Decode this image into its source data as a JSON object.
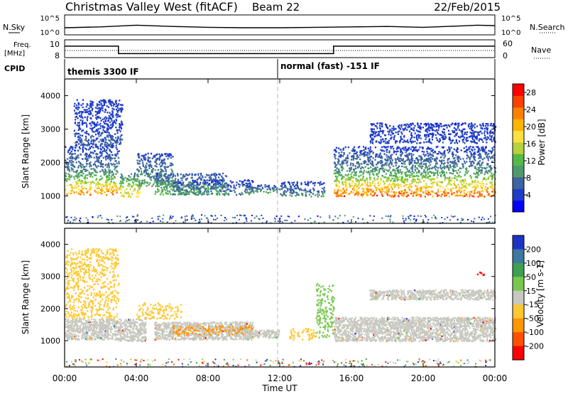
{
  "header": {
    "title": "Christmas Valley West (fitACF)",
    "beam": "Beam 22",
    "date": "22/Feb/2015"
  },
  "top_panels": {
    "nsky_label": "N.Sky",
    "nsearch_label": "N.Search",
    "noise_ticks": [
      "10^5",
      "10^0"
    ],
    "freq_label": [
      "Freq.",
      "[MHz]"
    ],
    "freq_ticks": [
      "10",
      "8"
    ],
    "nave_label": "Nave",
    "nave_ticks": [
      "60",
      "0"
    ],
    "cpid_label": "CPID",
    "cpid_segments": [
      {
        "label": "themis 3300 IF",
        "start_hour": 0
      },
      {
        "label": "normal (fast) -151 IF",
        "start_hour": 12
      }
    ]
  },
  "x_axis": {
    "label": "Time UT",
    "ticks": [
      "00:00",
      "04:00",
      "08:00",
      "12:00",
      "16:00",
      "20:00",
      "00:00"
    ]
  },
  "colors": {
    "power_scale": [
      "#0000ff",
      "#1e3cc8",
      "#3c64a0",
      "#4f9a6c",
      "#55b94a",
      "#b7d23a",
      "#ffe040",
      "#ffb400",
      "#ff8000",
      "#ff4000",
      "#ff0000"
    ],
    "velocity_scale": [
      "#1e32c8",
      "#3c78a0",
      "#3ca050",
      "#78c850",
      "#c8c8c0",
      "#ffc832",
      "#ff9600",
      "#ff5000",
      "#ff0000"
    ],
    "ground_scatter": "#c8c8c0"
  },
  "chart_data": [
    {
      "type": "line",
      "panel": "noise",
      "x": [
        0,
        2,
        4,
        6,
        8,
        10,
        12,
        14,
        16,
        18,
        20,
        22,
        23,
        24
      ],
      "series": [
        {
          "name": "N.Sky",
          "values": [
            1.0,
            1.2,
            1.6,
            1.3,
            1.1,
            1.0,
            1.0,
            1.1,
            1.2,
            1.3,
            1.1,
            1.4,
            1.6,
            1.5
          ]
        }
      ]
    },
    {
      "type": "line",
      "panel": "frequency",
      "x": [
        0,
        3,
        3,
        15,
        15,
        24
      ],
      "series": [
        {
          "name": "Freq.",
          "values": [
            10.3,
            10.3,
            8.8,
            8.8,
            10.3,
            10.3
          ]
        }
      ]
    },
    {
      "type": "heatmap",
      "panel": "power",
      "title": "",
      "xlabel": "Time UT",
      "ylabel": "Slant Range [km]",
      "xlim": [
        0,
        24
      ],
      "ylim": [
        180,
        4500
      ],
      "y_ticks": [
        1000,
        2000,
        3000,
        4000
      ],
      "colorbar": {
        "label": "Power [dB]",
        "ticks": [
          4,
          8,
          12,
          16,
          20,
          24,
          28
        ],
        "range": [
          0,
          30
        ]
      },
      "regions": [
        {
          "t0": 0.0,
          "t1": 2.9,
          "r0": 1050,
          "r1": 1700,
          "peak": 28
        },
        {
          "t0": 0.0,
          "t1": 3.0,
          "r0": 1700,
          "r1": 2500,
          "peak": 10
        },
        {
          "t0": 0.5,
          "t1": 3.2,
          "r0": 2500,
          "r1": 3900,
          "peak": 6
        },
        {
          "t0": 3.0,
          "t1": 4.2,
          "r0": 1000,
          "r1": 1700,
          "peak": 22
        },
        {
          "t0": 4.0,
          "t1": 6.0,
          "r0": 1300,
          "r1": 2300,
          "peak": 12
        },
        {
          "t0": 5.0,
          "t1": 9.0,
          "r0": 1050,
          "r1": 1700,
          "peak": 14
        },
        {
          "t0": 6.0,
          "t1": 10.5,
          "r0": 1050,
          "r1": 1500,
          "peak": 10
        },
        {
          "t0": 10.0,
          "t1": 12.0,
          "r0": 1100,
          "r1": 1350,
          "peak": 12
        },
        {
          "t0": 12.0,
          "t1": 14.5,
          "r0": 1000,
          "r1": 1450,
          "peak": 10
        },
        {
          "t0": 15.0,
          "t1": 24.0,
          "r0": 1000,
          "r1": 1750,
          "peak": 30
        },
        {
          "t0": 15.0,
          "t1": 24.0,
          "r0": 1750,
          "r1": 2500,
          "peak": 10
        },
        {
          "t0": 17.0,
          "t1": 24.0,
          "r0": 2600,
          "r1": 3200,
          "peak": 5
        }
      ]
    },
    {
      "type": "heatmap",
      "panel": "velocity",
      "title": "",
      "xlabel": "Time UT",
      "ylabel": "Slant Range [km]",
      "xlim": [
        0,
        24
      ],
      "ylim": [
        180,
        4500
      ],
      "y_ticks": [
        1000,
        2000,
        3000,
        4000
      ],
      "colorbar": {
        "label": "Velocity [m s-1]",
        "ticks": [
          200,
          100,
          50,
          15,
          -15,
          -50,
          -100,
          -200
        ]
      },
      "regions": [
        {
          "t0": 0.0,
          "t1": 3.0,
          "r0": 1050,
          "r1": 1700,
          "class": "ground"
        },
        {
          "t0": 0.0,
          "t1": 3.0,
          "r0": 1700,
          "r1": 3900,
          "class": "-50"
        },
        {
          "t0": 3.0,
          "t1": 4.5,
          "r0": 1000,
          "r1": 1700,
          "class": "ground"
        },
        {
          "t0": 4.0,
          "t1": 6.5,
          "r0": 1700,
          "r1": 2200,
          "class": "-50"
        },
        {
          "t0": 5.0,
          "t1": 10.5,
          "r0": 1050,
          "r1": 1600,
          "class": "ground"
        },
        {
          "t0": 6.0,
          "t1": 10.5,
          "r0": 1200,
          "r1": 1500,
          "class": "-100"
        },
        {
          "t0": 10.0,
          "t1": 12.0,
          "r0": 1100,
          "r1": 1350,
          "class": "ground"
        },
        {
          "t0": 12.5,
          "t1": 14.0,
          "r0": 1050,
          "r1": 1400,
          "class": "-50"
        },
        {
          "t0": 14.0,
          "t1": 15.0,
          "r0": 1100,
          "r1": 2800,
          "class": "50"
        },
        {
          "t0": 15.0,
          "t1": 24.0,
          "r0": 1000,
          "r1": 1750,
          "class": "ground"
        },
        {
          "t0": 17.0,
          "t1": 24.0,
          "r0": 2300,
          "r1": 2600,
          "class": "ground"
        },
        {
          "t0": 23.0,
          "t1": 23.5,
          "r0": 3050,
          "r1": 3200,
          "class": "-200"
        }
      ]
    }
  ]
}
